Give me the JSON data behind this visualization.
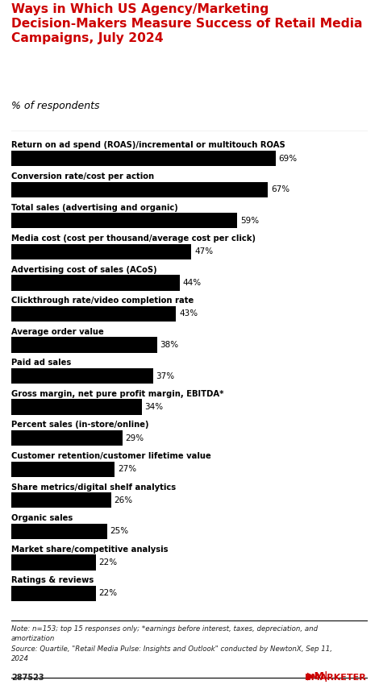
{
  "title": "Ways in Which US Agency/Marketing\nDecision-Makers Measure Success of Retail Media\nCampaigns, July 2024",
  "subtitle": "% of respondents",
  "categories": [
    "Return on ad spend (ROAS)/incremental or multitouch ROAS",
    "Conversion rate/cost per action",
    "Total sales (advertising and organic)",
    "Media cost (cost per thousand/average cost per click)",
    "Advertising cost of sales (ACoS)",
    "Clickthrough rate/video completion rate",
    "Average order value",
    "Paid ad sales",
    "Gross margin, net pure profit margin, EBITDA*",
    "Percent sales (in-store/online)",
    "Customer retention/customer lifetime value",
    "Share metrics/digital shelf analytics",
    "Organic sales",
    "Market share/competitive analysis",
    "Ratings & reviews"
  ],
  "values": [
    69,
    67,
    59,
    47,
    44,
    43,
    38,
    37,
    34,
    29,
    27,
    26,
    25,
    22,
    22
  ],
  "bar_color": "#000000",
  "label_color": "#000000",
  "value_color": "#000000",
  "title_color": "#cc0000",
  "subtitle_color": "#000000",
  "bg_color": "#ffffff",
  "note_text": "Note: n=153; top 15 responses only; *earnings before interest, taxes, depreciation, and\namortization\nSource: Quartile, \"Retail Media Pulse: Insights and Outlook\" conducted by NewtonX, Sep 11,\n2024",
  "footer_id": "287523",
  "xlim": [
    0,
    80
  ],
  "bar_height": 0.5
}
